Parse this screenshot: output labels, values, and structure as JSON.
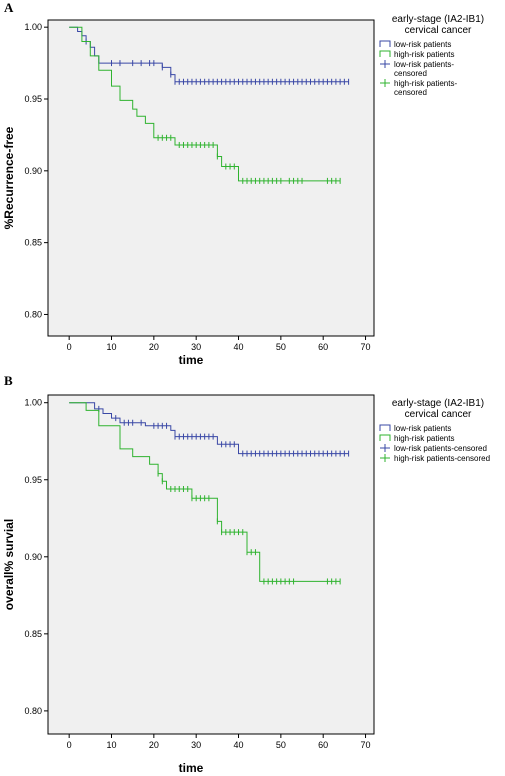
{
  "chart_data": [
    {
      "type": "line",
      "step": true,
      "panel_label": "A",
      "xlabel": "time",
      "ylabel": "%Recurrence-free",
      "xlim": [
        -5,
        72
      ],
      "ylim": [
        0.785,
        1.005
      ],
      "xticks": [
        0,
        10,
        20,
        30,
        40,
        50,
        60,
        70
      ],
      "yticks": [
        "0.80",
        "0.85",
        "0.90",
        "0.95",
        "1.00"
      ],
      "grid": false,
      "legend_placement": "right",
      "legend": {
        "title": [
          "early-stage (IA2-IB1)",
          "cervical cancer"
        ],
        "entries": [
          {
            "lines": [
              "low-risk patients"
            ],
            "style": "line",
            "series": 0
          },
          {
            "lines": [
              "high-risk patients"
            ],
            "style": "line",
            "series": 1
          },
          {
            "lines": [
              "low-risk patients-",
              "censored"
            ],
            "style": "cross",
            "series": 0
          },
          {
            "lines": [
              "high-risk patients-",
              "censored"
            ],
            "style": "cross",
            "series": 1
          }
        ]
      },
      "series": [
        {
          "color": "#3a48a6",
          "steps": [
            [
              0,
              1.0
            ],
            [
              2,
              0.997
            ],
            [
              3,
              0.994
            ],
            [
              4,
              0.99
            ],
            [
              5,
              0.986
            ],
            [
              6,
              0.98
            ],
            [
              7,
              0.975
            ],
            [
              22,
              0.972
            ],
            [
              24,
              0.967
            ],
            [
              25,
              0.962
            ],
            [
              66,
              0.962
            ]
          ],
          "censored": [
            [
              4,
              0.99
            ],
            [
              10,
              0.975
            ],
            [
              12,
              0.975
            ],
            [
              15,
              0.975
            ],
            [
              17,
              0.975
            ],
            [
              19,
              0.975
            ],
            [
              20,
              0.975
            ],
            [
              22,
              0.972
            ],
            [
              24,
              0.967
            ],
            [
              25,
              0.962
            ],
            [
              26,
              0.962
            ],
            [
              27,
              0.962
            ],
            [
              28,
              0.962
            ],
            [
              29,
              0.962
            ],
            [
              30,
              0.962
            ],
            [
              31,
              0.962
            ],
            [
              32,
              0.962
            ],
            [
              33,
              0.962
            ],
            [
              34,
              0.962
            ],
            [
              35,
              0.962
            ],
            [
              36,
              0.962
            ],
            [
              37,
              0.962
            ],
            [
              38,
              0.962
            ],
            [
              39,
              0.962
            ],
            [
              40,
              0.962
            ],
            [
              41,
              0.962
            ],
            [
              42,
              0.962
            ],
            [
              43,
              0.962
            ],
            [
              44,
              0.962
            ],
            [
              45,
              0.962
            ],
            [
              46,
              0.962
            ],
            [
              47,
              0.962
            ],
            [
              48,
              0.962
            ],
            [
              49,
              0.962
            ],
            [
              50,
              0.962
            ],
            [
              51,
              0.962
            ],
            [
              52,
              0.962
            ],
            [
              53,
              0.962
            ],
            [
              54,
              0.962
            ],
            [
              55,
              0.962
            ],
            [
              56,
              0.962
            ],
            [
              57,
              0.962
            ],
            [
              58,
              0.962
            ],
            [
              59,
              0.962
            ],
            [
              60,
              0.962
            ],
            [
              61,
              0.962
            ],
            [
              62,
              0.962
            ],
            [
              63,
              0.962
            ],
            [
              64,
              0.962
            ],
            [
              65,
              0.962
            ],
            [
              66,
              0.962
            ]
          ]
        },
        {
          "color": "#2fb32f",
          "steps": [
            [
              0,
              1.0
            ],
            [
              3,
              0.99
            ],
            [
              5,
              0.98
            ],
            [
              7,
              0.97
            ],
            [
              10,
              0.959
            ],
            [
              12,
              0.949
            ],
            [
              15,
              0.943
            ],
            [
              16,
              0.938
            ],
            [
              18,
              0.933
            ],
            [
              20,
              0.923
            ],
            [
              25,
              0.918
            ],
            [
              35,
              0.91
            ],
            [
              36,
              0.903
            ],
            [
              40,
              0.893
            ],
            [
              64,
              0.893
            ]
          ],
          "censored": [
            [
              21,
              0.923
            ],
            [
              22,
              0.923
            ],
            [
              23,
              0.923
            ],
            [
              24,
              0.923
            ],
            [
              26,
              0.918
            ],
            [
              27,
              0.918
            ],
            [
              28,
              0.918
            ],
            [
              29,
              0.918
            ],
            [
              30,
              0.918
            ],
            [
              31,
              0.918
            ],
            [
              32,
              0.918
            ],
            [
              33,
              0.918
            ],
            [
              34,
              0.918
            ],
            [
              35,
              0.91
            ],
            [
              37,
              0.903
            ],
            [
              38,
              0.903
            ],
            [
              39,
              0.903
            ],
            [
              41,
              0.893
            ],
            [
              42,
              0.893
            ],
            [
              43,
              0.893
            ],
            [
              44,
              0.893
            ],
            [
              45,
              0.893
            ],
            [
              46,
              0.893
            ],
            [
              47,
              0.893
            ],
            [
              48,
              0.893
            ],
            [
              49,
              0.893
            ],
            [
              50,
              0.893
            ],
            [
              52,
              0.893
            ],
            [
              53,
              0.893
            ],
            [
              54,
              0.893
            ],
            [
              55,
              0.893
            ],
            [
              61,
              0.893
            ],
            [
              62,
              0.893
            ],
            [
              63,
              0.893
            ],
            [
              64,
              0.893
            ]
          ]
        }
      ]
    },
    {
      "type": "line",
      "step": true,
      "panel_label": "B",
      "xlabel": "time",
      "ylabel": "overall% survial",
      "xlim": [
        -5,
        72
      ],
      "ylim": [
        0.785,
        1.005
      ],
      "xticks": [
        0,
        10,
        20,
        30,
        40,
        50,
        60,
        70
      ],
      "yticks": [
        "0.80",
        "0.85",
        "0.90",
        "0.95",
        "1.00"
      ],
      "grid": false,
      "legend_placement": "right",
      "legend": {
        "title": [
          "early-stage (IA2-IB1)",
          "cervical cancer"
        ],
        "entries": [
          {
            "lines": [
              "low-risk patients"
            ],
            "style": "line",
            "series": 0
          },
          {
            "lines": [
              "high-risk patients"
            ],
            "style": "line",
            "series": 1
          },
          {
            "lines": [
              "low-risk patients-censored"
            ],
            "style": "cross",
            "series": 0
          },
          {
            "lines": [
              "high-risk patients-censored"
            ],
            "style": "cross",
            "series": 1
          }
        ]
      },
      "series": [
        {
          "color": "#3a48a6",
          "steps": [
            [
              0,
              1.0
            ],
            [
              6,
              0.996
            ],
            [
              8,
              0.993
            ],
            [
              10,
              0.99
            ],
            [
              12,
              0.987
            ],
            [
              18,
              0.985
            ],
            [
              24,
              0.982
            ],
            [
              25,
              0.978
            ],
            [
              35,
              0.973
            ],
            [
              40,
              0.967
            ],
            [
              66,
              0.967
            ]
          ],
          "censored": [
            [
              7,
              0.996
            ],
            [
              11,
              0.99
            ],
            [
              13,
              0.987
            ],
            [
              14,
              0.987
            ],
            [
              15,
              0.987
            ],
            [
              17,
              0.987
            ],
            [
              20,
              0.985
            ],
            [
              21,
              0.985
            ],
            [
              22,
              0.985
            ],
            [
              23,
              0.985
            ],
            [
              25,
              0.978
            ],
            [
              26,
              0.978
            ],
            [
              27,
              0.978
            ],
            [
              28,
              0.978
            ],
            [
              29,
              0.978
            ],
            [
              30,
              0.978
            ],
            [
              31,
              0.978
            ],
            [
              32,
              0.978
            ],
            [
              33,
              0.978
            ],
            [
              34,
              0.978
            ],
            [
              36,
              0.973
            ],
            [
              37,
              0.973
            ],
            [
              38,
              0.973
            ],
            [
              39,
              0.973
            ],
            [
              41,
              0.967
            ],
            [
              42,
              0.967
            ],
            [
              43,
              0.967
            ],
            [
              44,
              0.967
            ],
            [
              45,
              0.967
            ],
            [
              46,
              0.967
            ],
            [
              47,
              0.967
            ],
            [
              48,
              0.967
            ],
            [
              49,
              0.967
            ],
            [
              50,
              0.967
            ],
            [
              51,
              0.967
            ],
            [
              52,
              0.967
            ],
            [
              53,
              0.967
            ],
            [
              54,
              0.967
            ],
            [
              55,
              0.967
            ],
            [
              56,
              0.967
            ],
            [
              57,
              0.967
            ],
            [
              58,
              0.967
            ],
            [
              59,
              0.967
            ],
            [
              60,
              0.967
            ],
            [
              61,
              0.967
            ],
            [
              62,
              0.967
            ],
            [
              63,
              0.967
            ],
            [
              64,
              0.967
            ],
            [
              65,
              0.967
            ],
            [
              66,
              0.967
            ]
          ]
        },
        {
          "color": "#2fb32f",
          "steps": [
            [
              0,
              1.0
            ],
            [
              4,
              0.995
            ],
            [
              7,
              0.985
            ],
            [
              12,
              0.97
            ],
            [
              15,
              0.965
            ],
            [
              19,
              0.96
            ],
            [
              21,
              0.954
            ],
            [
              22,
              0.949
            ],
            [
              23,
              0.944
            ],
            [
              29,
              0.938
            ],
            [
              35,
              0.923
            ],
            [
              36,
              0.916
            ],
            [
              42,
              0.903
            ],
            [
              45,
              0.884
            ],
            [
              64,
              0.884
            ]
          ],
          "censored": [
            [
              21,
              0.954
            ],
            [
              22,
              0.949
            ],
            [
              24,
              0.944
            ],
            [
              25,
              0.944
            ],
            [
              26,
              0.944
            ],
            [
              27,
              0.944
            ],
            [
              28,
              0.944
            ],
            [
              29,
              0.938
            ],
            [
              30,
              0.938
            ],
            [
              31,
              0.938
            ],
            [
              32,
              0.938
            ],
            [
              33,
              0.938
            ],
            [
              35,
              0.923
            ],
            [
              36,
              0.916
            ],
            [
              37,
              0.916
            ],
            [
              38,
              0.916
            ],
            [
              39,
              0.916
            ],
            [
              40,
              0.916
            ],
            [
              41,
              0.916
            ],
            [
              42,
              0.903
            ],
            [
              43,
              0.903
            ],
            [
              44,
              0.903
            ],
            [
              46,
              0.884
            ],
            [
              47,
              0.884
            ],
            [
              48,
              0.884
            ],
            [
              49,
              0.884
            ],
            [
              50,
              0.884
            ],
            [
              51,
              0.884
            ],
            [
              52,
              0.884
            ],
            [
              53,
              0.884
            ],
            [
              61,
              0.884
            ],
            [
              62,
              0.884
            ],
            [
              63,
              0.884
            ],
            [
              64,
              0.884
            ]
          ]
        }
      ]
    }
  ]
}
